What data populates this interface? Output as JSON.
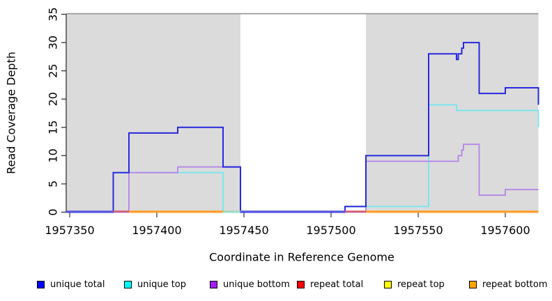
{
  "figure": {
    "xlabel": "Coordinate in Reference Genome",
    "ylabel": "Read Coverage Depth"
  },
  "legend": {
    "items": [
      {
        "label": "unique total",
        "color": "#0000FF"
      },
      {
        "label": "unique top",
        "color": "#00FFFF"
      },
      {
        "label": "unique bottom",
        "color": "#A020F0"
      },
      {
        "label": "repeat total",
        "color": "#FF0000"
      },
      {
        "label": "repeat top",
        "color": "#FFFF00"
      },
      {
        "label": "repeat bottom",
        "color": "#FFA500"
      }
    ]
  },
  "chart_data": {
    "type": "line",
    "subtype": "step-after",
    "title": "",
    "xlabel": "Coordinate in Reference Genome",
    "ylabel": "Read Coverage Depth",
    "xlim": [
      1957348,
      1957621
    ],
    "ylim": [
      0,
      35
    ],
    "x_ticks": [
      1957350,
      1957400,
      1957450,
      1957500,
      1957550,
      1957600
    ],
    "y_ticks": [
      0,
      5,
      10,
      15,
      20,
      25,
      30,
      35
    ],
    "grid": false,
    "legend_position": "bottom",
    "x_data_end": 1957619,
    "shaded_regions": [
      {
        "x0": 1957348,
        "x1": 1957448,
        "color": "#DBDBDB"
      },
      {
        "x0": 1957520,
        "x1": 1957619,
        "color": "#DBDBDB"
      }
    ],
    "cap_line": {
      "y": 35,
      "color": "#999999"
    },
    "series": [
      {
        "name": "repeat total",
        "color": "#D85A70",
        "steps": [
          [
            1957348,
            0
          ]
        ]
      },
      {
        "name": "repeat top",
        "color": "#F0E840",
        "steps": [
          [
            1957348,
            0
          ]
        ]
      },
      {
        "name": "repeat bottom",
        "color": "#FF9E2A",
        "steps": [
          [
            1957348,
            0
          ]
        ]
      },
      {
        "name": "unique top",
        "color": "#7CE6EC",
        "steps": [
          [
            1957348,
            0
          ],
          [
            1957375,
            7
          ],
          [
            1957438,
            0
          ],
          [
            1957508,
            1
          ],
          [
            1957556,
            19
          ],
          [
            1957572,
            18
          ],
          [
            1957619,
            15
          ]
        ]
      },
      {
        "name": "unique bottom",
        "color": "#B88BE8",
        "steps": [
          [
            1957348,
            0
          ],
          [
            1957384,
            7
          ],
          [
            1957412,
            8
          ],
          [
            1957448,
            0
          ],
          [
            1957520,
            9
          ],
          [
            1957573,
            10
          ],
          [
            1957575,
            11
          ],
          [
            1957576,
            12
          ],
          [
            1957585,
            3
          ],
          [
            1957600,
            4
          ]
        ]
      },
      {
        "name": "unique total",
        "color": "#2828DE",
        "steps": [
          [
            1957348,
            0
          ],
          [
            1957375,
            7
          ],
          [
            1957384,
            14
          ],
          [
            1957412,
            15
          ],
          [
            1957438,
            8
          ],
          [
            1957448,
            0
          ],
          [
            1957508,
            1
          ],
          [
            1957520,
            10
          ],
          [
            1957556,
            28
          ],
          [
            1957572,
            27
          ],
          [
            1957573,
            28
          ],
          [
            1957575,
            29
          ],
          [
            1957576,
            30
          ],
          [
            1957585,
            21
          ],
          [
            1957600,
            22
          ],
          [
            1957619,
            19
          ]
        ]
      }
    ],
    "baseline_segments": [
      {
        "x0": 1957348,
        "x1": 1957375,
        "color": "#5A5AE0"
      },
      {
        "x0": 1957375,
        "x1": 1957384,
        "color": "#D85A70"
      },
      {
        "x0": 1957384,
        "x1": 1957438,
        "color": "#FF9E2A"
      },
      {
        "x0": 1957438,
        "x1": 1957448,
        "color": "#A8D8BE"
      },
      {
        "x0": 1957448,
        "x1": 1957508,
        "color": "#5A5AE0"
      },
      {
        "x0": 1957508,
        "x1": 1957520,
        "color": "#D85A70"
      },
      {
        "x0": 1957520,
        "x1": 1957619,
        "color": "#FF9E2A"
      }
    ]
  }
}
